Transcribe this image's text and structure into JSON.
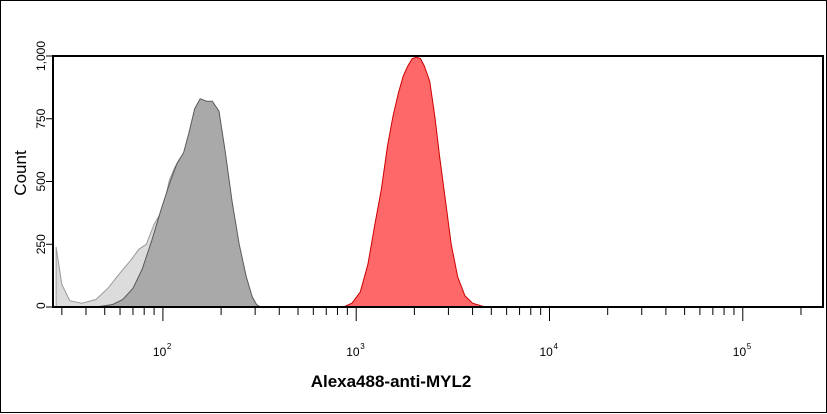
{
  "chart_data": {
    "type": "area",
    "title": "",
    "xlabel": "Alexa488-anti-MYL2",
    "ylabel": "Count",
    "x_scale": "log",
    "xlim": [
      27,
      260000
    ],
    "ylim": [
      0,
      1000
    ],
    "y_ticks": [
      0,
      250,
      500,
      750,
      1000
    ],
    "y_tick_labels": [
      "0",
      "250",
      "500",
      "750",
      "1,000"
    ],
    "x_major_ticks": [
      {
        "value": 100,
        "base": "10",
        "exp": "2"
      },
      {
        "value": 1000,
        "base": "10",
        "exp": "3"
      },
      {
        "value": 10000,
        "base": "10",
        "exp": "4"
      },
      {
        "value": 100000,
        "base": "10",
        "exp": "5"
      }
    ],
    "grid": false,
    "legend": "none",
    "series": [
      {
        "fill": "#dcdcdc",
        "stroke": "#9a9a9a",
        "points": [
          [
            28,
            240
          ],
          [
            30,
            90
          ],
          [
            33,
            25
          ],
          [
            38,
            15
          ],
          [
            45,
            30
          ],
          [
            52,
            75
          ],
          [
            60,
            135
          ],
          [
            68,
            185
          ],
          [
            75,
            230
          ],
          [
            82,
            250
          ],
          [
            90,
            330
          ],
          [
            100,
            390
          ],
          [
            108,
            505
          ],
          [
            115,
            555
          ],
          [
            122,
            590
          ],
          [
            130,
            545
          ],
          [
            142,
            505
          ],
          [
            160,
            380
          ],
          [
            185,
            230
          ],
          [
            215,
            95
          ],
          [
            245,
            30
          ],
          [
            270,
            5
          ],
          [
            290,
            0
          ]
        ]
      },
      {
        "fill": "#a9a9a9",
        "stroke": "#5a5a5a",
        "points": [
          [
            45,
            0
          ],
          [
            55,
            10
          ],
          [
            62,
            30
          ],
          [
            70,
            75
          ],
          [
            78,
            150
          ],
          [
            88,
            270
          ],
          [
            98,
            390
          ],
          [
            108,
            490
          ],
          [
            118,
            570
          ],
          [
            128,
            615
          ],
          [
            136,
            690
          ],
          [
            146,
            790
          ],
          [
            156,
            830
          ],
          [
            168,
            820
          ],
          [
            180,
            820
          ],
          [
            195,
            780
          ],
          [
            210,
            620
          ],
          [
            228,
            420
          ],
          [
            248,
            250
          ],
          [
            270,
            120
          ],
          [
            290,
            40
          ],
          [
            305,
            10
          ],
          [
            320,
            0
          ]
        ]
      },
      {
        "fill": "#ff6868",
        "stroke": "#cc0000",
        "points": [
          [
            860,
            0
          ],
          [
            950,
            15
          ],
          [
            1050,
            60
          ],
          [
            1150,
            170
          ],
          [
            1250,
            330
          ],
          [
            1350,
            470
          ],
          [
            1450,
            640
          ],
          [
            1550,
            760
          ],
          [
            1650,
            850
          ],
          [
            1750,
            920
          ],
          [
            1850,
            960
          ],
          [
            1950,
            990
          ],
          [
            2050,
            995
          ],
          [
            2150,
            990
          ],
          [
            2250,
            960
          ],
          [
            2400,
            900
          ],
          [
            2550,
            760
          ],
          [
            2700,
            600
          ],
          [
            2900,
            420
          ],
          [
            3100,
            250
          ],
          [
            3350,
            120
          ],
          [
            3650,
            45
          ],
          [
            4000,
            15
          ],
          [
            4500,
            3
          ],
          [
            4900,
            0
          ]
        ]
      }
    ]
  }
}
